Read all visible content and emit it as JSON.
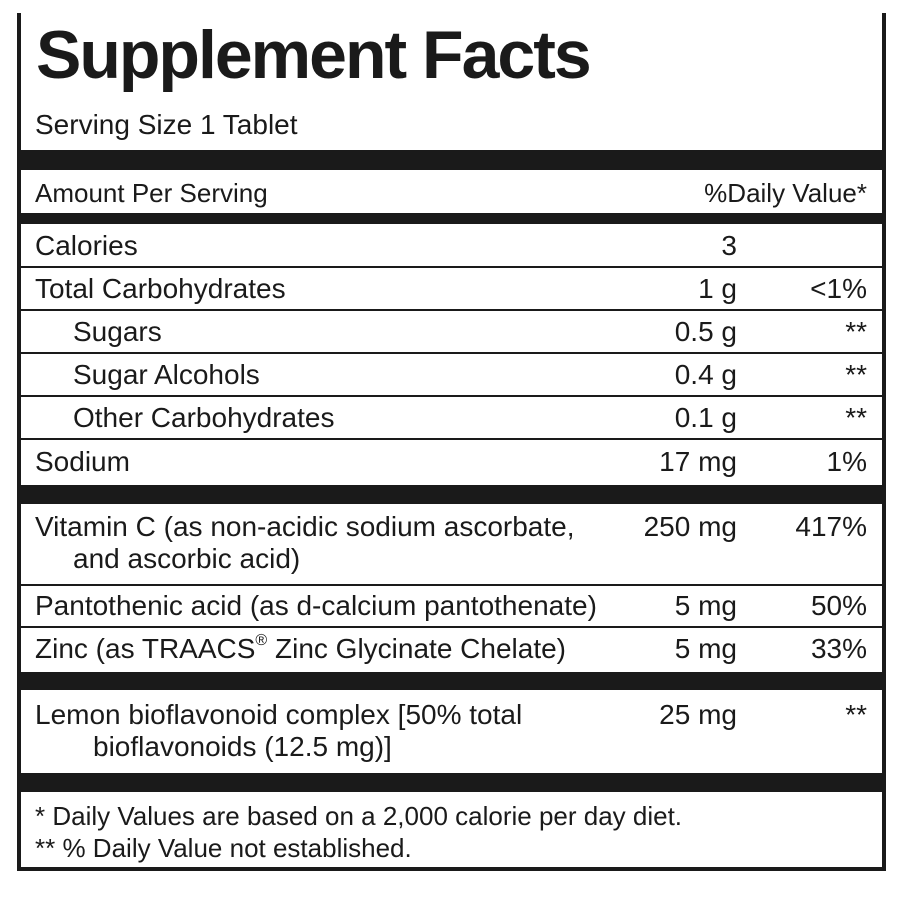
{
  "title": "Supplement Facts",
  "serving_size": "Serving Size 1 Tablet",
  "header": {
    "amount_per_serving": "Amount Per Serving",
    "daily_value": "%Daily Value*"
  },
  "rows": [
    {
      "name": "Calories",
      "amount": "3",
      "dv": ""
    },
    {
      "name": "Total Carbohydrates",
      "amount": "1 g",
      "dv": "<1%"
    },
    {
      "name": "Sugars",
      "amount": "0.5 g",
      "dv": "**"
    },
    {
      "name": "Sugar Alcohols",
      "amount": "0.4 g",
      "dv": "**"
    },
    {
      "name": "Other Carbohydrates",
      "amount": "0.1 g",
      "dv": "**"
    },
    {
      "name": "Sodium",
      "amount": "17 mg",
      "dv": "1%"
    }
  ],
  "vitamins": [
    {
      "name": "Vitamin C (as non-acidic sodium ascorbate,",
      "name_line2": "and ascorbic acid)",
      "amount": "250 mg",
      "dv": "417%"
    },
    {
      "name": "Pantothenic acid (as d-calcium pantothenate)",
      "amount": "5 mg",
      "dv": "50%"
    },
    {
      "name_pre": "Zinc (as TRAACS",
      "name_sup": "®",
      "name_post": " Zinc Glycinate Chelate)",
      "amount": "5 mg",
      "dv": "33%"
    }
  ],
  "other": [
    {
      "name": "Lemon bioflavonoid complex [50% total",
      "name_line2": "bioflavonoids (12.5 mg)]",
      "amount": "25 mg",
      "dv": "**"
    }
  ],
  "footnotes": [
    "* Daily Values are based on a 2,000 calorie per day diet.",
    "** % Daily Value not established."
  ]
}
